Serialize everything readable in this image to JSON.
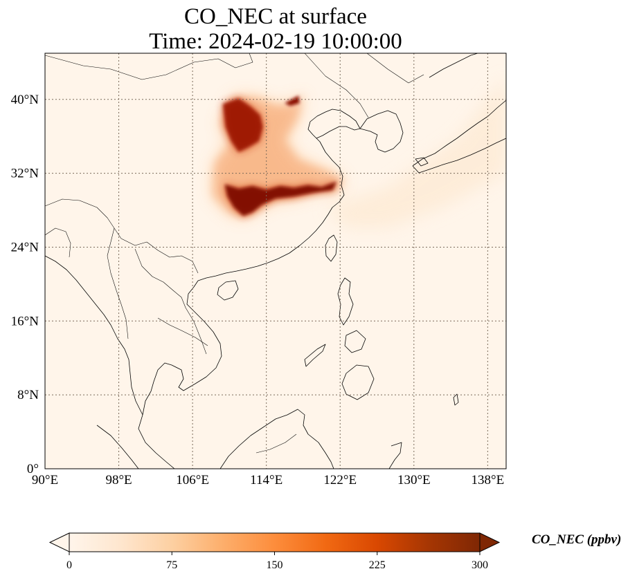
{
  "title": {
    "line1": "CO_NEC at surface",
    "line2": "Time: 2024-02-19 10:00:00"
  },
  "map": {
    "lon_range": [
      90,
      140
    ],
    "lat_range": [
      0,
      45
    ],
    "lon_ticks": [
      {
        "value": 90,
        "label": "90°E"
      },
      {
        "value": 98,
        "label": "98°E"
      },
      {
        "value": 106,
        "label": "106°E"
      },
      {
        "value": 114,
        "label": "114°E"
      },
      {
        "value": 122,
        "label": "122°E"
      },
      {
        "value": 130,
        "label": "130°E"
      },
      {
        "value": 138,
        "label": "138°E"
      }
    ],
    "lat_ticks": [
      {
        "value": 0,
        "label": "0°"
      },
      {
        "value": 8,
        "label": "8°N"
      },
      {
        "value": 16,
        "label": "16°N"
      },
      {
        "value": 24,
        "label": "24°N"
      },
      {
        "value": 32,
        "label": "32°N"
      },
      {
        "value": 40,
        "label": "40°N"
      }
    ],
    "gridlines": true,
    "background_color": "#fff5ea"
  },
  "colorbar": {
    "label": "CO_NEC (ppbv)",
    "range": [
      0,
      300
    ],
    "ticks": [
      {
        "value": 0,
        "label": "0"
      },
      {
        "value": 75,
        "label": "75"
      },
      {
        "value": 150,
        "label": "150"
      },
      {
        "value": 225,
        "label": "225"
      },
      {
        "value": 300,
        "label": "300"
      }
    ],
    "extend": "both",
    "colormap": [
      "#fff5eb",
      "#fee6ce",
      "#fdd0a2",
      "#fdae6b",
      "#fd8d3c",
      "#f16913",
      "#d94801",
      "#a63603",
      "#7f2704"
    ]
  },
  "plume": {
    "high_core": [
      [
        109.5,
        30.8
      ],
      [
        111,
        30.3
      ],
      [
        112.5,
        30.6
      ],
      [
        114,
        30.2
      ],
      [
        115.5,
        30.6
      ],
      [
        117,
        30.4
      ],
      [
        118.5,
        30.7
      ],
      [
        120,
        30.5
      ],
      [
        121.6,
        31.1
      ],
      [
        121.2,
        30.2
      ],
      [
        119,
        29.9
      ],
      [
        117,
        29.5
      ],
      [
        115,
        29.3
      ],
      [
        113.5,
        28.6
      ],
      [
        112.5,
        27.8
      ],
      [
        111.5,
        27.4
      ],
      [
        110.5,
        28.3
      ],
      [
        109.8,
        29.5
      ]
    ],
    "north_core": [
      [
        109.3,
        39.5
      ],
      [
        111,
        40.1
      ],
      [
        112.3,
        39.2
      ],
      [
        113.3,
        38.3
      ],
      [
        113.6,
        37
      ],
      [
        113.2,
        35.5
      ],
      [
        112,
        34.8
      ],
      [
        111,
        34.3
      ],
      [
        110.2,
        35.5
      ],
      [
        109.6,
        37
      ]
    ],
    "beijing_core": [
      [
        116,
        39.6
      ],
      [
        117.5,
        40.4
      ],
      [
        117.6,
        39.6
      ],
      [
        116.6,
        39.3
      ]
    ],
    "mid_region": [
      [
        108.4,
        33.1
      ],
      [
        110,
        35.2
      ],
      [
        109,
        37.5
      ],
      [
        110.5,
        40.3
      ],
      [
        113,
        40.2
      ],
      [
        115.2,
        39.3
      ],
      [
        116.6,
        39.5
      ],
      [
        118,
        40.5
      ],
      [
        117.4,
        38
      ],
      [
        116,
        35.6
      ],
      [
        117.5,
        33.5
      ],
      [
        120.5,
        32.3
      ],
      [
        122.4,
        31.3
      ],
      [
        121.6,
        30
      ],
      [
        119.8,
        30.2
      ],
      [
        117,
        29.3
      ],
      [
        115,
        29.1
      ],
      [
        113,
        28
      ],
      [
        111.5,
        27.2
      ],
      [
        110,
        27.7
      ],
      [
        108.2,
        29.6
      ]
    ]
  }
}
